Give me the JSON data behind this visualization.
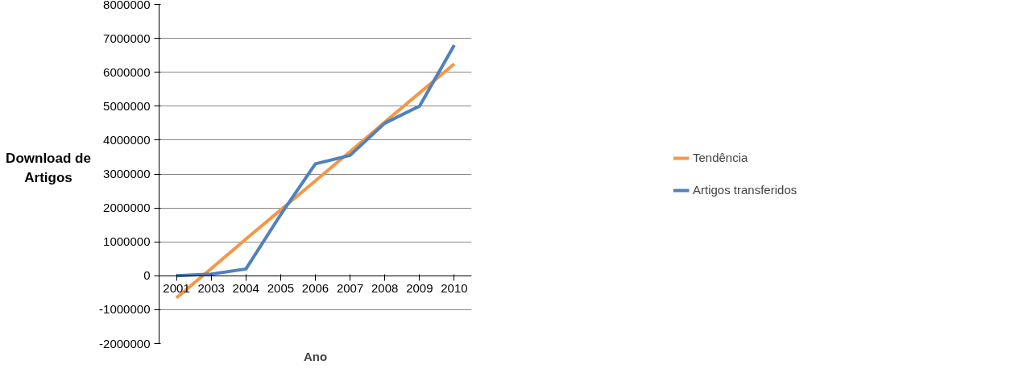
{
  "chart_data": {
    "type": "line",
    "xlabel": "Ano",
    "ylabel": "Download de Artigos",
    "categories": [
      "2001",
      "2003",
      "2004",
      "2005",
      "2006",
      "2007",
      "2008",
      "2009",
      "2010"
    ],
    "series": [
      {
        "name": "Tendência",
        "color": "#f79646",
        "values": [
          -650000,
          210000,
          1080000,
          1940000,
          2800000,
          3660000,
          4530000,
          5390000,
          6250000
        ]
      },
      {
        "name": "Artigos transferidos",
        "color": "#4f81bd",
        "values": [
          0,
          50000,
          200000,
          1800000,
          3300000,
          3550000,
          4500000,
          5000000,
          6800000
        ]
      }
    ],
    "ylim": [
      -2000000,
      8000000
    ],
    "yticks": [
      -2000000,
      -1000000,
      0,
      1000000,
      2000000,
      3000000,
      4000000,
      5000000,
      6000000,
      7000000,
      8000000
    ],
    "grid": "y",
    "legend": "right",
    "marker": "none",
    "line_style": "solid"
  }
}
